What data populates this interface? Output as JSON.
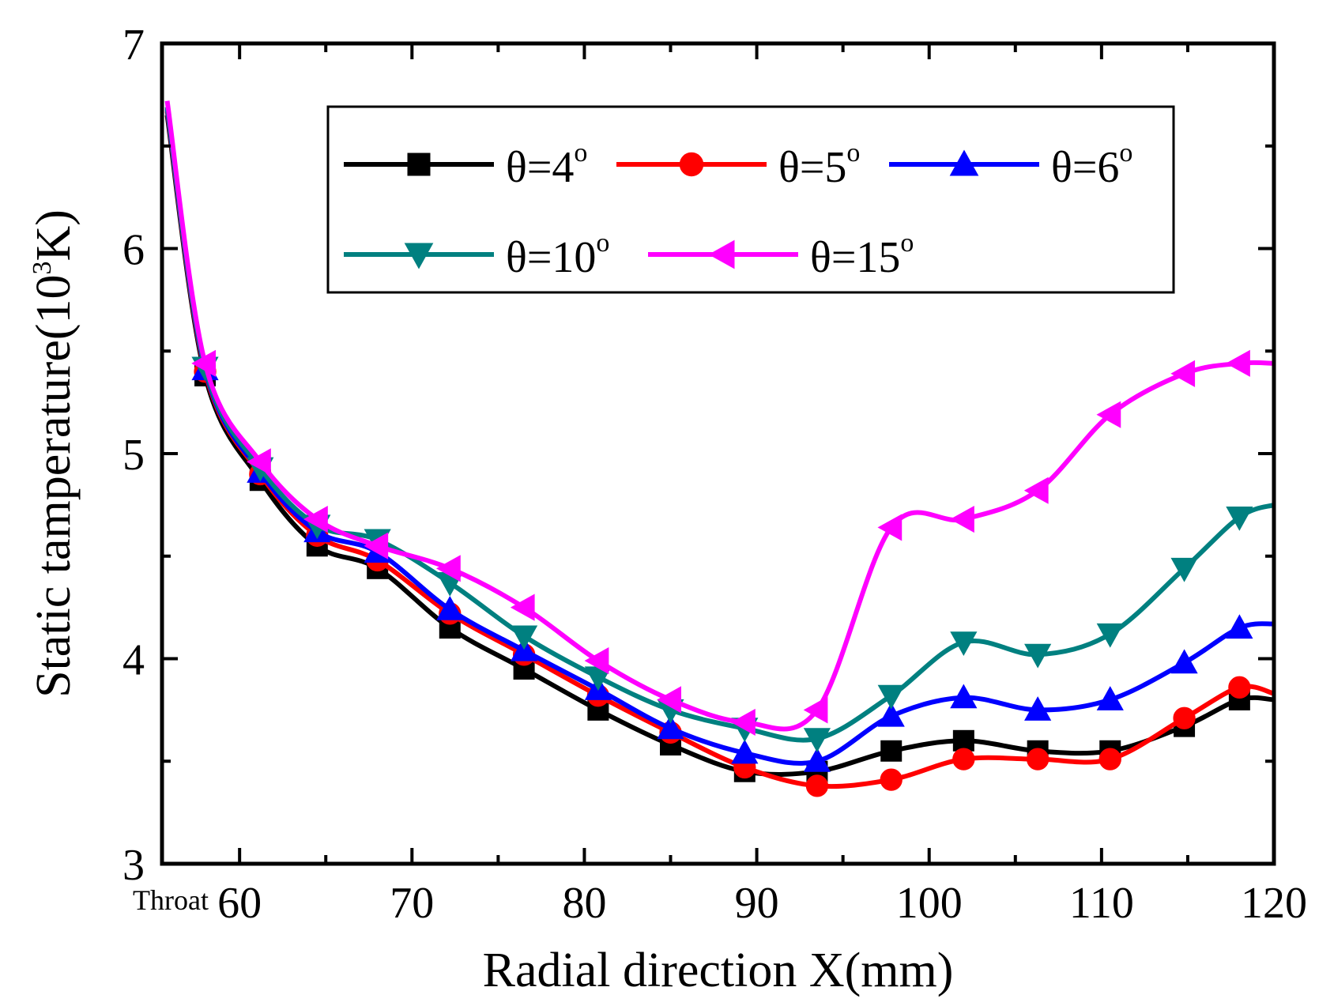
{
  "chart_data": {
    "type": "line",
    "xlabel": "Radial direction X(mm)",
    "ylabel": {
      "prefix": "Static tamperature(10",
      "sup": "3",
      "suffix": "K)"
    },
    "xlim": [
      55.5,
      120
    ],
    "ylim": [
      3,
      7
    ],
    "x_ticks": [
      60,
      70,
      80,
      90,
      100,
      110,
      120
    ],
    "y_ticks": [
      3,
      4,
      5,
      6,
      7
    ],
    "x_extra_label": {
      "text": "Throat",
      "x": 55.5
    },
    "grid": false,
    "legend_position": "top-right",
    "series": [
      {
        "name": "θ=4",
        "marker": "square",
        "color": "#000000",
        "x": [
          55.8,
          58.0,
          61.2,
          64.5,
          68.0,
          72.2,
          76.5,
          80.8,
          85.0,
          89.3,
          93.5,
          97.8,
          102.0,
          106.3,
          110.5,
          114.8,
          118.0,
          120.0
        ],
        "y": [
          6.65,
          5.38,
          4.87,
          4.55,
          4.44,
          4.15,
          3.95,
          3.75,
          3.58,
          3.45,
          3.45,
          3.55,
          3.6,
          3.55,
          3.55,
          3.67,
          3.8,
          3.8
        ]
      },
      {
        "name": "θ=5",
        "marker": "circle",
        "color": "#ff0000",
        "x": [
          55.8,
          58.0,
          61.2,
          64.5,
          68.0,
          72.2,
          76.5,
          80.8,
          85.0,
          89.3,
          93.5,
          97.8,
          102.0,
          106.3,
          110.5,
          114.8,
          118.0,
          120.0
        ],
        "y": [
          6.67,
          5.4,
          4.9,
          4.6,
          4.48,
          4.22,
          4.02,
          3.82,
          3.64,
          3.47,
          3.38,
          3.41,
          3.51,
          3.51,
          3.51,
          3.71,
          3.86,
          3.83
        ]
      },
      {
        "name": "θ=6",
        "marker": "triangle-up",
        "color": "#0000ff",
        "x": [
          55.8,
          58.0,
          61.2,
          64.5,
          68.0,
          72.2,
          76.5,
          80.8,
          85.0,
          89.3,
          93.5,
          97.8,
          102.0,
          106.3,
          110.5,
          114.8,
          118.0,
          120.0
        ],
        "y": [
          6.68,
          5.41,
          4.91,
          4.62,
          4.52,
          4.24,
          4.04,
          3.85,
          3.66,
          3.54,
          3.5,
          3.72,
          3.81,
          3.75,
          3.8,
          3.98,
          4.15,
          4.17
        ]
      },
      {
        "name": "θ=10",
        "marker": "triangle-down",
        "color": "#008080",
        "x": [
          55.8,
          58.0,
          61.2,
          64.5,
          68.0,
          72.2,
          76.5,
          80.8,
          85.0,
          89.3,
          93.5,
          97.8,
          102.0,
          106.3,
          110.5,
          114.8,
          118.0,
          120.0
        ],
        "y": [
          6.69,
          5.42,
          4.93,
          4.65,
          4.58,
          4.37,
          4.11,
          3.91,
          3.75,
          3.66,
          3.61,
          3.82,
          4.08,
          4.02,
          4.12,
          4.44,
          4.69,
          4.75
        ]
      },
      {
        "name": "θ=15",
        "marker": "triangle-left",
        "color": "#ff00ff",
        "x": [
          55.8,
          58.0,
          61.2,
          64.5,
          68.0,
          72.2,
          76.5,
          80.8,
          85.0,
          89.3,
          93.5,
          97.8,
          102.0,
          106.3,
          110.5,
          114.8,
          118.0,
          120.0
        ],
        "y": [
          6.72,
          5.44,
          4.96,
          4.68,
          4.55,
          4.44,
          4.25,
          3.99,
          3.8,
          3.69,
          3.75,
          4.64,
          4.68,
          4.82,
          5.19,
          5.39,
          5.44,
          5.44
        ]
      }
    ]
  }
}
